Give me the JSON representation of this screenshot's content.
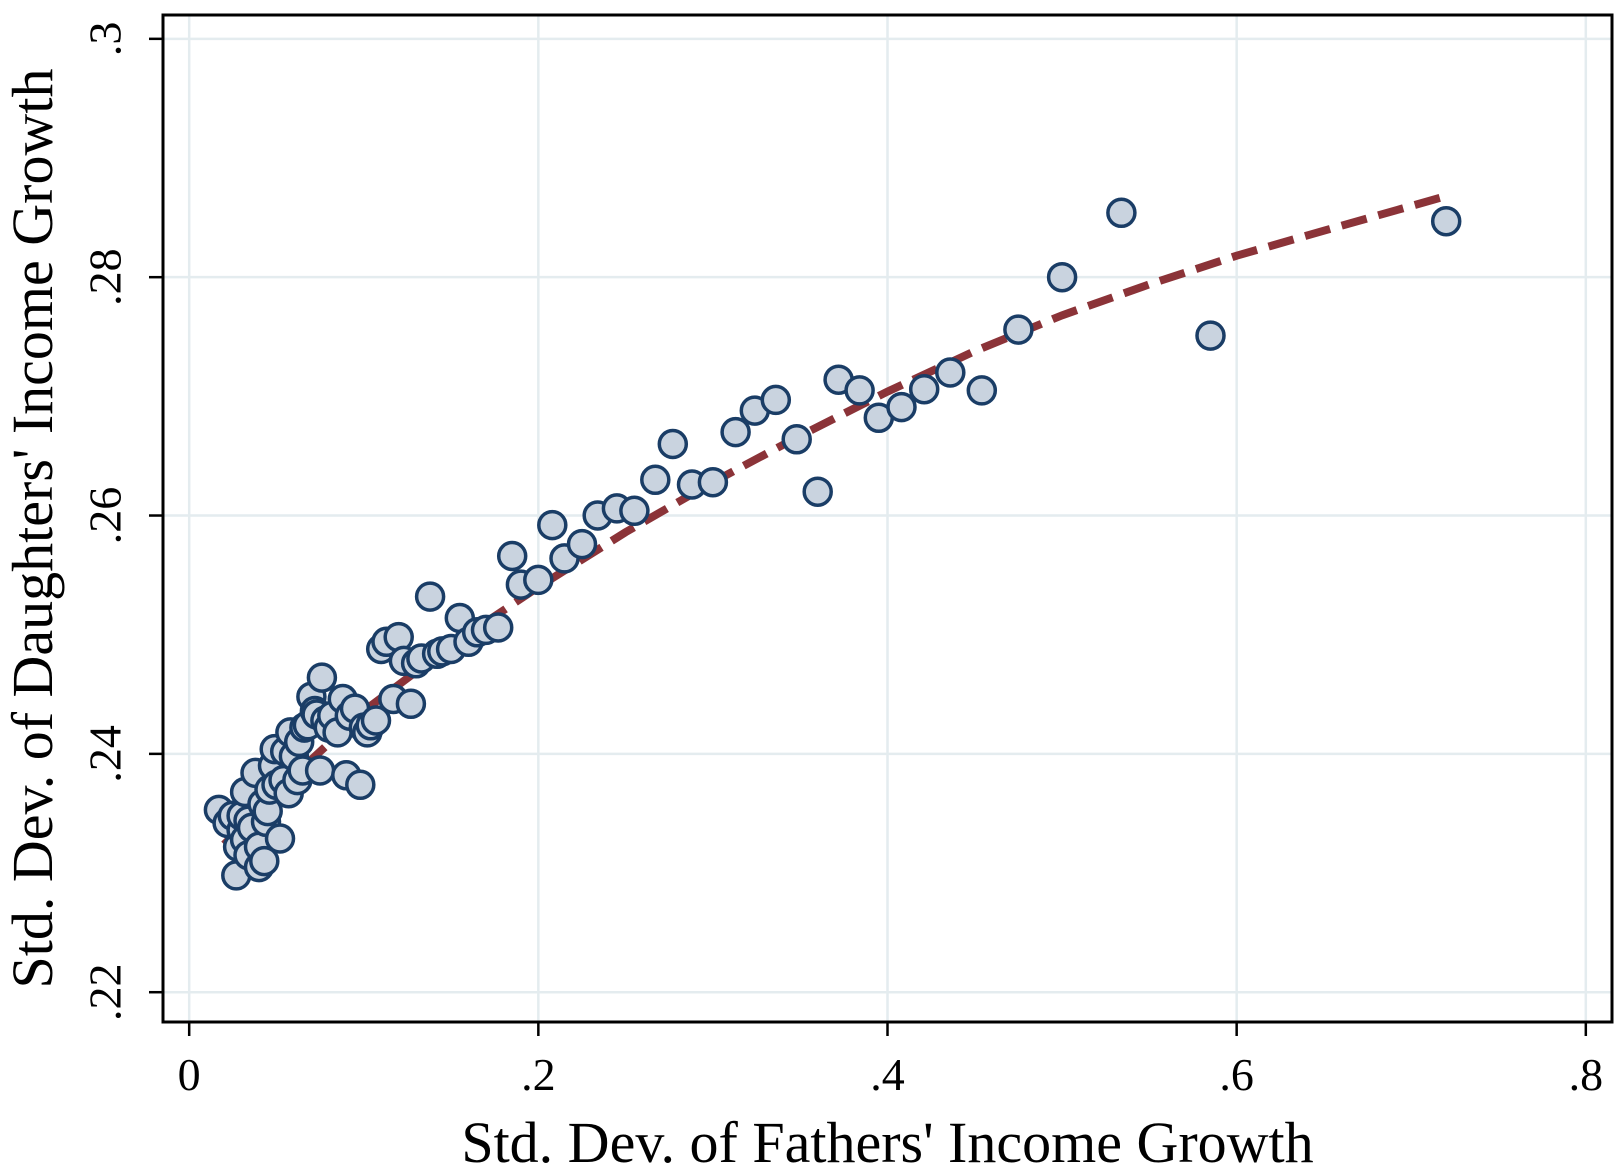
{
  "chart_data": {
    "type": "scatter",
    "title": "",
    "xlabel": "Std. Dev. of Fathers' Income Growth",
    "ylabel": "Std. Dev. of Daughters' Income Growth",
    "xlim": [
      -0.015,
      0.815
    ],
    "ylim": [
      0.2175,
      0.302
    ],
    "xticks": [
      0,
      0.2,
      0.4,
      0.6,
      0.8
    ],
    "xtick_labels": [
      "0",
      ".2",
      ".4",
      ".6",
      ".8"
    ],
    "yticks": [
      0.22,
      0.24,
      0.26,
      0.28,
      0.3
    ],
    "ytick_labels": [
      ".22",
      ".24",
      ".26",
      ".28",
      ".3"
    ],
    "grid": true,
    "legend": "none",
    "colors": {
      "marker_fill": "#c9d3df",
      "marker_edge": "#1a3d66",
      "fit_line": "#8b3338",
      "grid": "#e4ecef"
    },
    "series": [
      {
        "kind": "scatter",
        "x": [
          0.017,
          0.022,
          0.025,
          0.027,
          0.028,
          0.03,
          0.03,
          0.032,
          0.032,
          0.034,
          0.034,
          0.036,
          0.038,
          0.04,
          0.04,
          0.042,
          0.043,
          0.044,
          0.045,
          0.046,
          0.048,
          0.049,
          0.05,
          0.052,
          0.054,
          0.055,
          0.057,
          0.058,
          0.06,
          0.062,
          0.063,
          0.065,
          0.066,
          0.068,
          0.07,
          0.072,
          0.073,
          0.075,
          0.076,
          0.078,
          0.08,
          0.082,
          0.085,
          0.088,
          0.09,
          0.092,
          0.095,
          0.098,
          0.1,
          0.102,
          0.104,
          0.107,
          0.11,
          0.113,
          0.117,
          0.12,
          0.123,
          0.127,
          0.13,
          0.133,
          0.138,
          0.142,
          0.145,
          0.15,
          0.155,
          0.16,
          0.165,
          0.17,
          0.177,
          0.185,
          0.19,
          0.2,
          0.208,
          0.215,
          0.225,
          0.234,
          0.245,
          0.255,
          0.267,
          0.277,
          0.288,
          0.3,
          0.313,
          0.324,
          0.336,
          0.348,
          0.36,
          0.372,
          0.384,
          0.395,
          0.408,
          0.421,
          0.436,
          0.454,
          0.475,
          0.5,
          0.534,
          0.585,
          0.72
        ],
        "y": [
          0.2353,
          0.2342,
          0.2348,
          0.2298,
          0.2322,
          0.2336,
          0.2348,
          0.2368,
          0.2328,
          0.2344,
          0.2315,
          0.2338,
          0.2384,
          0.2305,
          0.2322,
          0.2358,
          0.231,
          0.2343,
          0.2352,
          0.237,
          0.239,
          0.2404,
          0.2374,
          0.2329,
          0.2378,
          0.2402,
          0.2367,
          0.2418,
          0.2398,
          0.2378,
          0.241,
          0.2386,
          0.2422,
          0.2424,
          0.2448,
          0.2436,
          0.2433,
          0.2386,
          0.2464,
          0.2428,
          0.2422,
          0.2432,
          0.2418,
          0.2446,
          0.2382,
          0.2432,
          0.2438,
          0.2374,
          0.2422,
          0.2418,
          0.2424,
          0.2428,
          0.2488,
          0.2494,
          0.2446,
          0.2498,
          0.2478,
          0.2442,
          0.2476,
          0.248,
          0.2532,
          0.2484,
          0.2486,
          0.2488,
          0.2514,
          0.2494,
          0.2502,
          0.2504,
          0.2506,
          0.2566,
          0.2542,
          0.2546,
          0.2592,
          0.2564,
          0.2576,
          0.26,
          0.2606,
          0.2604,
          0.263,
          0.266,
          0.2626,
          0.2628,
          0.267,
          0.2688,
          0.2697,
          0.2664,
          0.262,
          0.2714,
          0.2705,
          0.2682,
          0.2691,
          0.2706,
          0.272,
          0.2705,
          0.2756,
          0.28,
          0.2854,
          0.2751,
          0.2847
        ]
      },
      {
        "kind": "fit-line",
        "x": [
          0.02,
          0.05,
          0.1,
          0.15,
          0.2,
          0.25,
          0.3,
          0.35,
          0.4,
          0.45,
          0.5,
          0.55,
          0.6,
          0.65,
          0.72
        ],
        "y": [
          0.2324,
          0.2368,
          0.2436,
          0.2491,
          0.254,
          0.2586,
          0.2628,
          0.2667,
          0.2704,
          0.2738,
          0.2768,
          0.2794,
          0.2818,
          0.2839,
          0.2868
        ]
      }
    ]
  }
}
